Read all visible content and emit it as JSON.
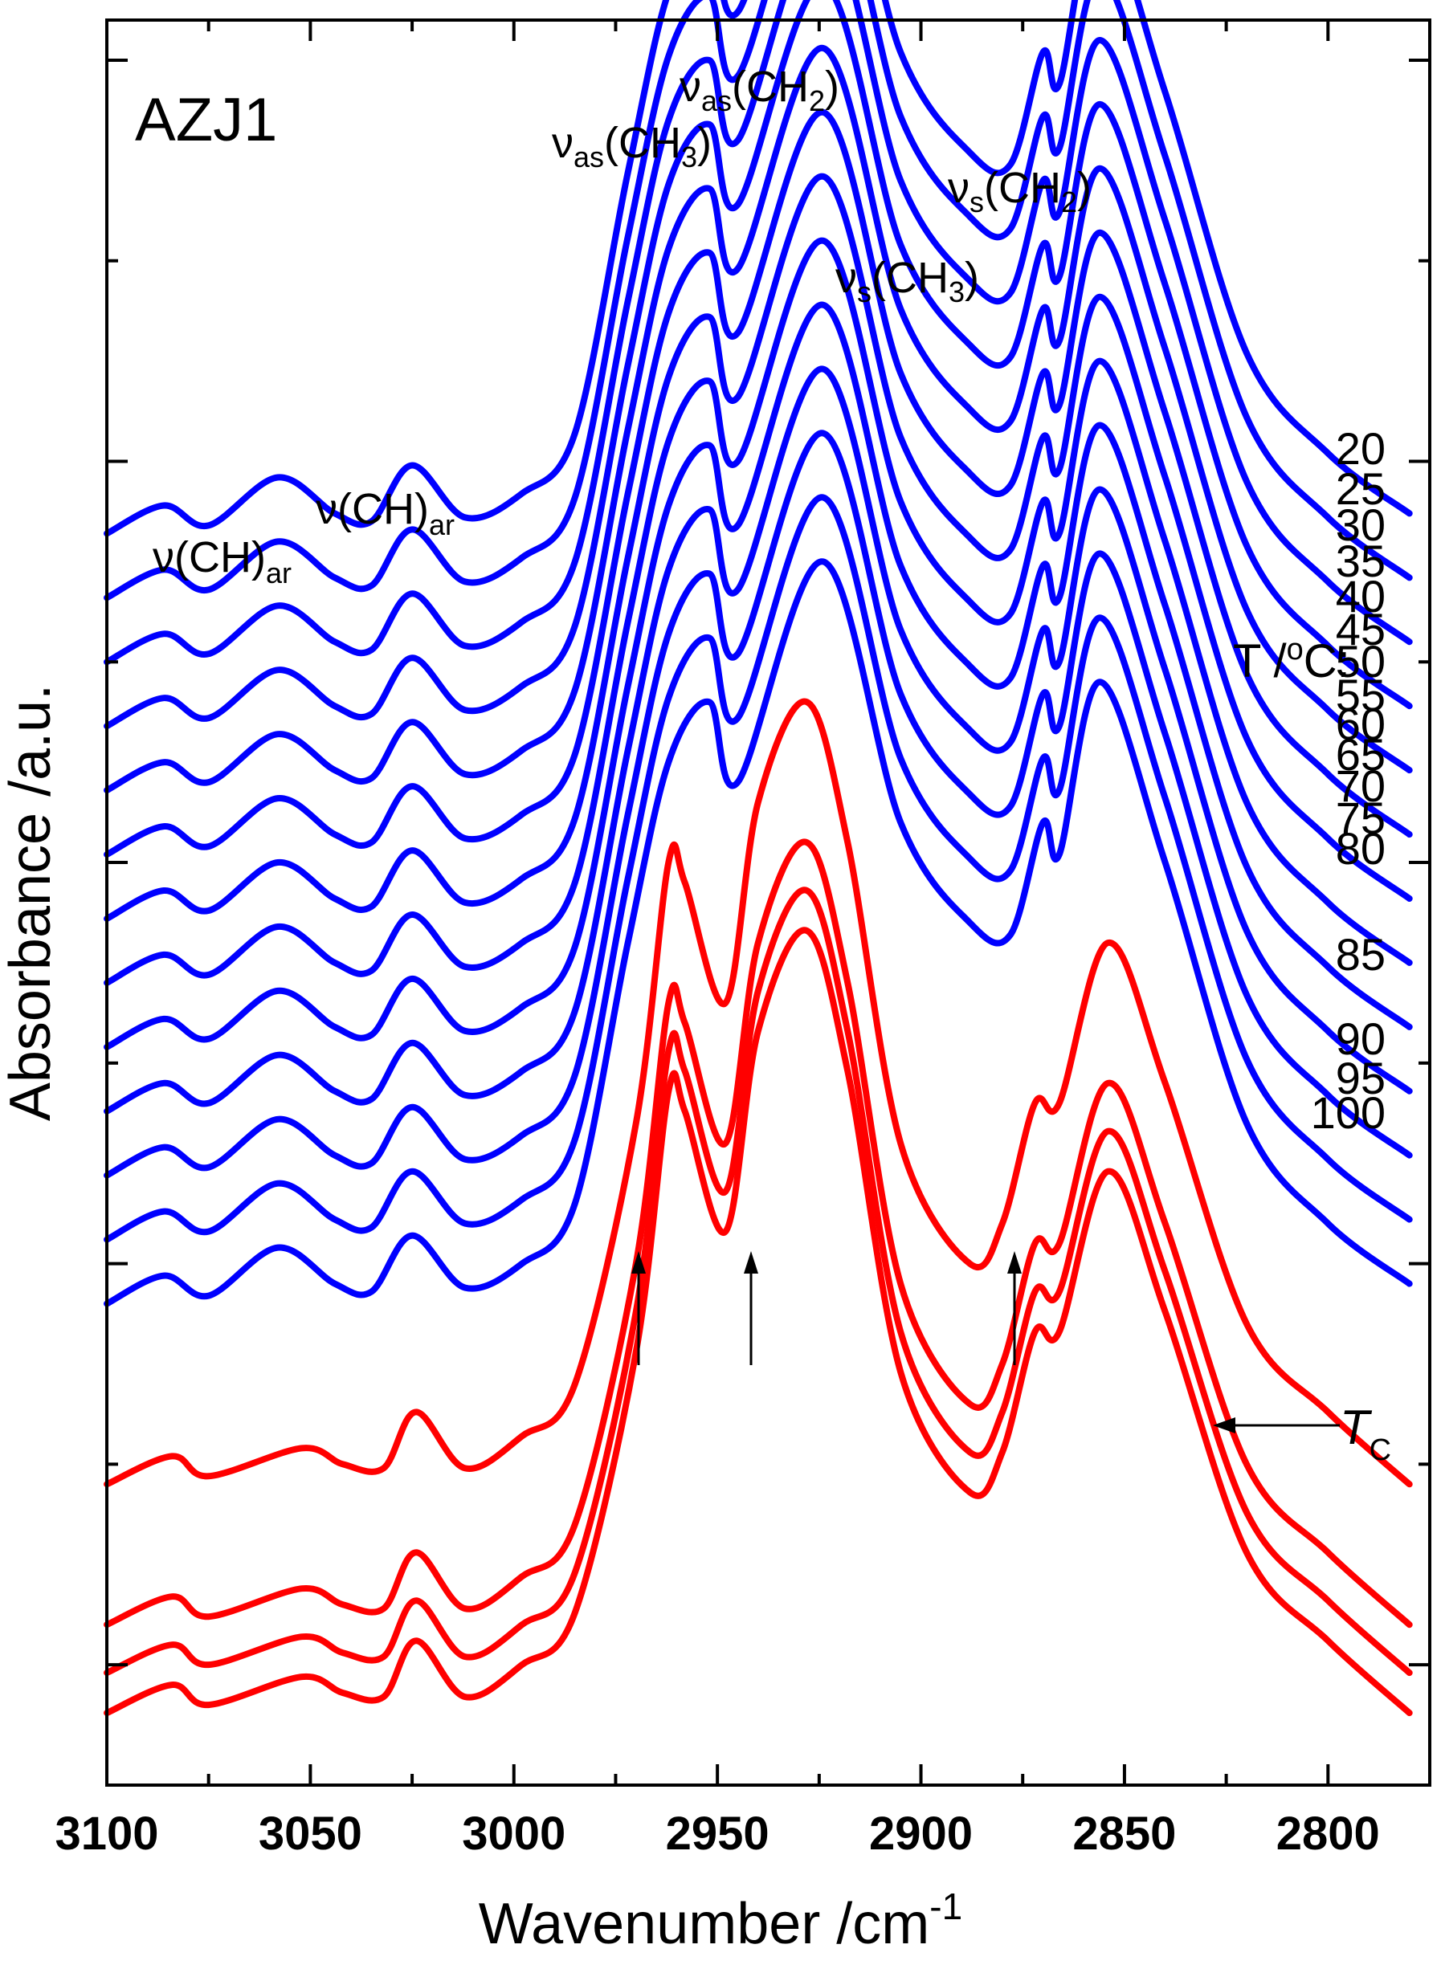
{
  "chart_data": {
    "type": "line",
    "title": "",
    "panel_label": "AZJ1",
    "xlabel": "Wavenumber /cm",
    "xlabel_superscript": "-1",
    "ylabel": "Absorbance /a.u.",
    "xlim": [
      3100,
      2775
    ],
    "ylim": [
      -0.3,
      4.1
    ],
    "x_ticks": [
      3100,
      3050,
      3000,
      2950,
      2900,
      2850,
      2800
    ],
    "x_tick_labels": [
      "3100",
      "3050",
      "3000",
      "2950",
      "2900",
      "2850",
      "2800"
    ],
    "y_ticks": [
      0,
      1,
      2,
      3,
      4
    ],
    "legend_title": "T /",
    "legend_title_unit": "C:",
    "peak_labels": [
      {
        "base": "ν",
        "sub": "as",
        "group": "(CH",
        "group_sub": "2",
        "close": ")"
      },
      {
        "base": "ν",
        "sub": "as",
        "group": "(CH",
        "group_sub": "3",
        "close": ")"
      },
      {
        "base": "ν",
        "sub": "s",
        "group": "(CH",
        "group_sub": "2",
        "close": ")"
      },
      {
        "base": "ν",
        "sub": "s",
        "group": "(CH",
        "group_sub": "3",
        "close": ")"
      },
      {
        "base": "ν(CH)",
        "sub": "ar"
      },
      {
        "base": "ν(CH)",
        "sub": "ar"
      }
    ],
    "transition_label": {
      "text": "T",
      "sub": "C"
    },
    "colors": {
      "low_temperature_phase": "#0000ff",
      "high_temperature_phase": "#ff0000"
    },
    "series": [
      {
        "name": "20",
        "phase": "low",
        "offset": 2.82
      },
      {
        "name": "25",
        "phase": "low",
        "offset": 2.66
      },
      {
        "name": "30",
        "phase": "low",
        "offset": 2.5
      },
      {
        "name": "35",
        "phase": "low",
        "offset": 2.34
      },
      {
        "name": "40",
        "phase": "low",
        "offset": 2.18
      },
      {
        "name": "45",
        "phase": "low",
        "offset": 2.02
      },
      {
        "name": "50",
        "phase": "low",
        "offset": 1.86
      },
      {
        "name": "55",
        "phase": "low",
        "offset": 1.7
      },
      {
        "name": "60",
        "phase": "low",
        "offset": 1.54
      },
      {
        "name": "65",
        "phase": "low",
        "offset": 1.38
      },
      {
        "name": "70",
        "phase": "low",
        "offset": 1.22
      },
      {
        "name": "75",
        "phase": "low",
        "offset": 1.06
      },
      {
        "name": "80",
        "phase": "low",
        "offset": 0.9
      },
      {
        "name": "85",
        "phase": "high",
        "offset": 0.45
      },
      {
        "name": "90",
        "phase": "high",
        "offset": 0.1
      },
      {
        "name": "95",
        "phase": "high",
        "offset": -0.02
      },
      {
        "name": "100",
        "phase": "high",
        "offset": -0.12
      }
    ],
    "profiles": {
      "low": {
        "note": "absorbance above series offset (series offset added per curve)",
        "x": [
          3100,
          3086,
          3075,
          3058,
          3044,
          3035,
          3025,
          3012,
          2998,
          2985,
          2972,
          2962,
          2952,
          2945,
          2924,
          2905,
          2888,
          2878,
          2870,
          2866,
          2856,
          2840,
          2820,
          2800,
          2780
        ],
        "y": [
          0.0,
          0.07,
          0.02,
          0.14,
          0.05,
          0.03,
          0.17,
          0.04,
          0.1,
          0.25,
          0.9,
          1.35,
          1.5,
          1.3,
          1.85,
          1.2,
          0.95,
          0.92,
          1.2,
          1.12,
          1.55,
          1.1,
          0.45,
          0.2,
          0.05
        ]
      },
      "high": {
        "note": "absorbance above series offset (series offset added per curve)",
        "x": [
          3100,
          3084,
          3075,
          3052,
          3042,
          3032,
          3024,
          3012,
          2998,
          2985,
          2970,
          2962,
          2958,
          2948,
          2940,
          2928,
          2918,
          2905,
          2888,
          2880,
          2872,
          2866,
          2854,
          2840,
          2820,
          2800,
          2780
        ],
        "y": [
          0.0,
          0.07,
          0.02,
          0.09,
          0.05,
          0.04,
          0.18,
          0.04,
          0.12,
          0.25,
          0.9,
          1.55,
          1.5,
          1.2,
          1.7,
          1.95,
          1.6,
          0.85,
          0.55,
          0.65,
          0.95,
          0.95,
          1.35,
          1.0,
          0.4,
          0.18,
          0.0
        ]
      }
    }
  }
}
